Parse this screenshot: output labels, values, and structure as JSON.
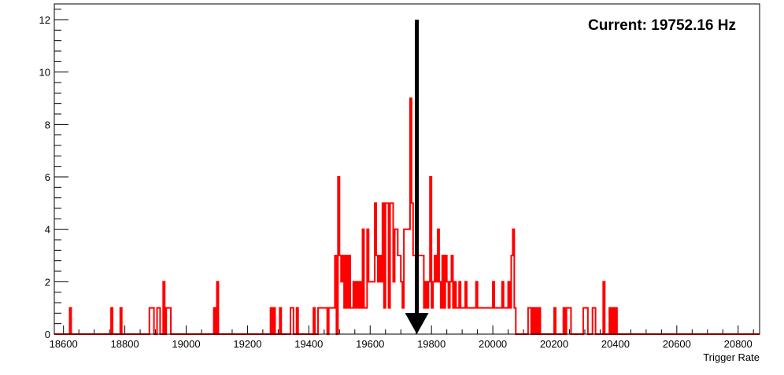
{
  "chart_data": {
    "type": "histogram",
    "title": "",
    "xlabel": "Trigger Rate",
    "ylabel": "",
    "xlim": [
      18570,
      20870
    ],
    "ylim": [
      0,
      12.6
    ],
    "x_ticks": [
      18600,
      18800,
      19000,
      19200,
      19400,
      19600,
      19800,
      20000,
      20200,
      20400,
      20600,
      20800
    ],
    "y_ticks": [
      0,
      2,
      4,
      6,
      8,
      10,
      12
    ],
    "bin_width": 5,
    "grid": false,
    "legend": "none",
    "series": [
      {
        "color": "#ff0000",
        "bins": [
          [
            18620,
            1
          ],
          [
            18755,
            1
          ],
          [
            18785,
            1
          ],
          [
            18880,
            1
          ],
          [
            18885,
            1
          ],
          [
            18890,
            1
          ],
          [
            18905,
            1
          ],
          [
            18910,
            1
          ],
          [
            18925,
            2
          ],
          [
            18935,
            1
          ],
          [
            18940,
            1
          ],
          [
            18945,
            1
          ],
          [
            19090,
            1
          ],
          [
            19100,
            2
          ],
          [
            19275,
            1
          ],
          [
            19285,
            1
          ],
          [
            19305,
            1
          ],
          [
            19340,
            1
          ],
          [
            19345,
            1
          ],
          [
            19360,
            1
          ],
          [
            19415,
            1
          ],
          [
            19430,
            1
          ],
          [
            19435,
            1
          ],
          [
            19440,
            1
          ],
          [
            19445,
            1
          ],
          [
            19450,
            1
          ],
          [
            19455,
            1
          ],
          [
            19465,
            1
          ],
          [
            19470,
            1
          ],
          [
            19475,
            1
          ],
          [
            19480,
            1
          ],
          [
            19485,
            3
          ],
          [
            19495,
            6
          ],
          [
            19500,
            3
          ],
          [
            19505,
            2
          ],
          [
            19510,
            3
          ],
          [
            19515,
            1
          ],
          [
            19520,
            3
          ],
          [
            19525,
            1
          ],
          [
            19530,
            3
          ],
          [
            19535,
            1
          ],
          [
            19540,
            1
          ],
          [
            19545,
            2
          ],
          [
            19550,
            1
          ],
          [
            19555,
            2
          ],
          [
            19560,
            1
          ],
          [
            19565,
            2
          ],
          [
            19570,
            1
          ],
          [
            19575,
            4
          ],
          [
            19580,
            1
          ],
          [
            19585,
            1
          ],
          [
            19590,
            4
          ],
          [
            19595,
            2
          ],
          [
            19600,
            2
          ],
          [
            19605,
            2
          ],
          [
            19610,
            2
          ],
          [
            19615,
            5
          ],
          [
            19620,
            3
          ],
          [
            19625,
            2
          ],
          [
            19630,
            3
          ],
          [
            19635,
            2
          ],
          [
            19640,
            5
          ],
          [
            19645,
            1
          ],
          [
            19650,
            5
          ],
          [
            19655,
            5
          ],
          [
            19660,
            1
          ],
          [
            19665,
            5
          ],
          [
            19670,
            5
          ],
          [
            19675,
            2
          ],
          [
            19680,
            4
          ],
          [
            19685,
            4
          ],
          [
            19690,
            3
          ],
          [
            19695,
            3
          ],
          [
            19700,
            2
          ],
          [
            19705,
            1
          ],
          [
            19710,
            4
          ],
          [
            19715,
            4
          ],
          [
            19720,
            4
          ],
          [
            19725,
            4
          ],
          [
            19730,
            9
          ],
          [
            19735,
            5
          ],
          [
            19740,
            3
          ],
          [
            19745,
            3
          ],
          [
            19750,
            4
          ],
          [
            19755,
            3
          ],
          [
            19760,
            3
          ],
          [
            19765,
            3
          ],
          [
            19770,
            3
          ],
          [
            19775,
            1
          ],
          [
            19780,
            2
          ],
          [
            19785,
            1
          ],
          [
            19790,
            2
          ],
          [
            19795,
            6
          ],
          [
            19800,
            1
          ],
          [
            19805,
            2
          ],
          [
            19810,
            3
          ],
          [
            19815,
            2
          ],
          [
            19820,
            4
          ],
          [
            19825,
            2
          ],
          [
            19830,
            1
          ],
          [
            19835,
            3
          ],
          [
            19840,
            1
          ],
          [
            19845,
            3
          ],
          [
            19850,
            2
          ],
          [
            19855,
            1
          ],
          [
            19860,
            2
          ],
          [
            19865,
            3
          ],
          [
            19870,
            1
          ],
          [
            19875,
            2
          ],
          [
            19880,
            1
          ],
          [
            19885,
            1
          ],
          [
            19890,
            2
          ],
          [
            19895,
            1
          ],
          [
            19900,
            1
          ],
          [
            19905,
            1
          ],
          [
            19910,
            2
          ],
          [
            19915,
            1
          ],
          [
            19920,
            1
          ],
          [
            19925,
            1
          ],
          [
            19930,
            1
          ],
          [
            19935,
            1
          ],
          [
            19940,
            1
          ],
          [
            19945,
            2
          ],
          [
            19950,
            1
          ],
          [
            19955,
            1
          ],
          [
            19960,
            1
          ],
          [
            19965,
            1
          ],
          [
            19970,
            1
          ],
          [
            19975,
            1
          ],
          [
            19980,
            1
          ],
          [
            19985,
            1
          ],
          [
            19990,
            1
          ],
          [
            19995,
            1
          ],
          [
            20000,
            2
          ],
          [
            20005,
            1
          ],
          [
            20010,
            1
          ],
          [
            20015,
            1
          ],
          [
            20020,
            1
          ],
          [
            20025,
            1
          ],
          [
            20030,
            2
          ],
          [
            20035,
            1
          ],
          [
            20040,
            1
          ],
          [
            20045,
            1
          ],
          [
            20050,
            2
          ],
          [
            20055,
            1
          ],
          [
            20060,
            3
          ],
          [
            20065,
            4
          ],
          [
            20070,
            1
          ],
          [
            20115,
            1
          ],
          [
            20120,
            1
          ],
          [
            20130,
            1
          ],
          [
            20140,
            1
          ],
          [
            20150,
            1
          ],
          [
            20200,
            1
          ],
          [
            20230,
            1
          ],
          [
            20240,
            1
          ],
          [
            20245,
            1
          ],
          [
            20250,
            1
          ],
          [
            20295,
            1
          ],
          [
            20300,
            1
          ],
          [
            20305,
            1
          ],
          [
            20325,
            1
          ],
          [
            20330,
            1
          ],
          [
            20360,
            2
          ],
          [
            20380,
            1
          ],
          [
            20390,
            1
          ],
          [
            20400,
            1
          ]
        ]
      }
    ],
    "annotations": [
      {
        "text": "Current: 19752.16 Hz",
        "position": "top-right"
      },
      {
        "type": "arrow",
        "x": 19752.16,
        "y_from": 12,
        "y_to": 0,
        "color": "#000000"
      }
    ]
  }
}
